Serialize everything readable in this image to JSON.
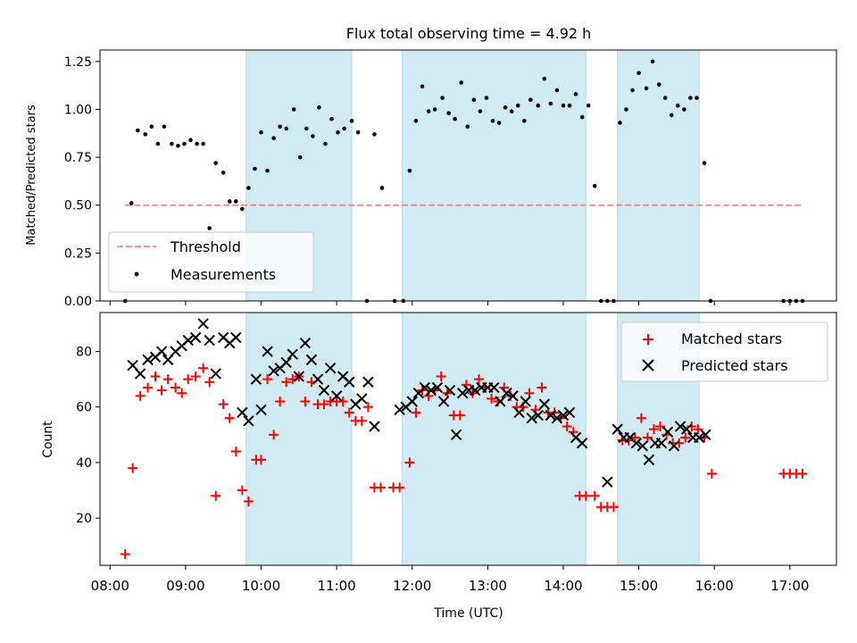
{
  "chart_data": [
    {
      "type": "scatter",
      "title": "Flux total observing time = 4.92 h",
      "xlabel": "",
      "ylabel": "Matched/Predicted stars",
      "xlim": [
        "07:52",
        "17:37"
      ],
      "ylim": [
        0,
        1.31
      ],
      "yticks": [
        0.0,
        0.25,
        0.5,
        0.75,
        1.0,
        1.25
      ],
      "ytick_labels": [
        "0.00",
        "0.25",
        "0.50",
        "0.75",
        "1.00",
        "1.25"
      ],
      "shaded_intervals": [
        [
          "09:48",
          "11:12"
        ],
        [
          "11:52",
          "14:18"
        ],
        [
          "14:43",
          "15:48"
        ]
      ],
      "shade_color": "#add8e6",
      "legend": {
        "position": "lower-left",
        "entries": [
          {
            "label": "Threshold",
            "color": "#ff7f7f",
            "style": "dashed-line"
          },
          {
            "label": "Measurements",
            "color": "#000000",
            "style": "dot"
          }
        ]
      },
      "series": [
        {
          "name": "Threshold",
          "kind": "line",
          "color": "#ff7f7f",
          "x": [
            "08:12",
            "17:10"
          ],
          "y": [
            0.5,
            0.5
          ]
        },
        {
          "name": "Measurements",
          "kind": "scatter",
          "color": "#000000",
          "x": [
            "08:12",
            "08:17",
            "08:22",
            "08:28",
            "08:33",
            "08:38",
            "08:43",
            "08:49",
            "08:54",
            "08:59",
            "09:04",
            "09:09",
            "09:14",
            "09:19",
            "09:24",
            "09:30",
            "09:35",
            "09:40",
            "09:45",
            "09:50",
            "09:55",
            "10:00",
            "10:05",
            "10:10",
            "10:15",
            "10:20",
            "10:26",
            "10:31",
            "10:36",
            "10:41",
            "10:46",
            "10:51",
            "10:56",
            "11:01",
            "11:06",
            "11:12",
            "11:17",
            "11:24",
            "11:30",
            "11:36",
            "11:46",
            "11:53",
            "11:58",
            "12:03",
            "12:08",
            "12:13",
            "12:18",
            "12:24",
            "12:29",
            "12:34",
            "12:39",
            "12:44",
            "12:49",
            "12:54",
            "12:59",
            "13:04",
            "13:09",
            "13:14",
            "13:19",
            "13:24",
            "13:29",
            "13:34",
            "13:40",
            "13:45",
            "13:50",
            "13:55",
            "14:00",
            "14:05",
            "14:10",
            "14:15",
            "14:20",
            "14:25",
            "14:30",
            "14:35",
            "14:40",
            "14:45",
            "14:50",
            "14:55",
            "15:00",
            "15:06",
            "15:11",
            "15:16",
            "15:21",
            "15:26",
            "15:31",
            "15:36",
            "15:41",
            "15:46",
            "15:52",
            "15:57",
            "16:55",
            "17:00",
            "17:05",
            "17:10"
          ],
          "y": [
            0.0,
            0.51,
            0.89,
            0.87,
            0.91,
            0.82,
            0.91,
            0.82,
            0.81,
            0.82,
            0.84,
            0.82,
            0.82,
            0.38,
            0.72,
            0.67,
            0.52,
            0.52,
            0.48,
            0.59,
            0.69,
            0.88,
            0.68,
            0.85,
            0.91,
            0.9,
            1.0,
            0.75,
            0.9,
            0.86,
            1.01,
            0.82,
            0.95,
            0.88,
            0.9,
            0.94,
            0.88,
            0.0,
            0.87,
            0.59,
            0.0,
            0.0,
            0.68,
            0.94,
            1.12,
            0.99,
            1.0,
            1.06,
            0.98,
            0.95,
            1.14,
            0.91,
            1.05,
            0.99,
            1.06,
            0.94,
            0.93,
            1.01,
            0.99,
            1.02,
            0.94,
            1.05,
            1.02,
            1.16,
            1.03,
            1.1,
            1.02,
            1.02,
            1.08,
            0.96,
            1.02,
            0.6,
            0.0,
            0.0,
            0.0,
            0.93,
            1.0,
            1.1,
            1.19,
            1.11,
            1.25,
            1.13,
            1.06,
            0.97,
            1.02,
            1.0,
            1.06,
            1.06,
            0.72,
            0.0,
            0.0,
            0.0,
            0.0,
            0.0
          ]
        }
      ]
    },
    {
      "type": "scatter",
      "xlabel": "Time (UTC)",
      "ylabel": "Count",
      "xlim": [
        "07:52",
        "17:37"
      ],
      "ylim": [
        3,
        94
      ],
      "yticks": [
        20,
        40,
        60,
        80
      ],
      "ytick_labels": [
        "20",
        "40",
        "60",
        "80"
      ],
      "xticks": [
        "08:00",
        "09:00",
        "10:00",
        "11:00",
        "12:00",
        "13:00",
        "14:00",
        "15:00",
        "16:00",
        "17:00"
      ],
      "xtick_labels": [
        "08:00",
        "09:00",
        "10:00",
        "11:00",
        "12:00",
        "13:00",
        "14:00",
        "15:00",
        "16:00",
        "17:00"
      ],
      "shaded_intervals": [
        [
          "09:48",
          "11:12"
        ],
        [
          "11:52",
          "14:18"
        ],
        [
          "14:43",
          "15:48"
        ]
      ],
      "legend": {
        "position": "upper-right",
        "entries": [
          {
            "label": "Matched stars",
            "color": "#ff0000",
            "style": "plus"
          },
          {
            "label": "Predicted stars",
            "color": "#000000",
            "style": "cross"
          }
        ]
      },
      "series": [
        {
          "name": "Matched stars",
          "marker": "+",
          "color": "#ff0000",
          "x": [
            "08:12",
            "08:18",
            "08:24",
            "08:30",
            "08:36",
            "08:41",
            "08:46",
            "08:52",
            "08:57",
            "09:02",
            "09:08",
            "09:14",
            "09:19",
            "09:24",
            "09:30",
            "09:35",
            "09:40",
            "09:45",
            "09:50",
            "09:56",
            "10:00",
            "10:05",
            "10:10",
            "10:15",
            "10:20",
            "10:25",
            "10:30",
            "10:35",
            "10:40",
            "10:45",
            "10:50",
            "10:55",
            "11:00",
            "11:05",
            "11:10",
            "11:15",
            "11:20",
            "11:25",
            "11:30",
            "11:35",
            "11:45",
            "11:50",
            "11:58",
            "12:03",
            "12:08",
            "12:13",
            "12:18",
            "12:23",
            "12:28",
            "12:33",
            "12:38",
            "12:43",
            "12:48",
            "12:53",
            "12:58",
            "13:03",
            "13:08",
            "13:13",
            "13:18",
            "13:23",
            "13:28",
            "13:33",
            "13:38",
            "13:43",
            "13:48",
            "13:53",
            "13:58",
            "14:03",
            "14:08",
            "14:13",
            "14:18",
            "14:25",
            "14:30",
            "14:35",
            "14:40",
            "14:47",
            "14:52",
            "14:57",
            "15:02",
            "15:07",
            "15:12",
            "15:17",
            "15:22",
            "15:27",
            "15:32",
            "15:37",
            "15:42",
            "15:47",
            "15:52",
            "15:58",
            "16:55",
            "17:00",
            "17:05",
            "17:10"
          ],
          "y": [
            7,
            38,
            64,
            67,
            71,
            66,
            70,
            67,
            65,
            70,
            71,
            74,
            69,
            28,
            61,
            56,
            44,
            30,
            26,
            41,
            41,
            70,
            50,
            62,
            69,
            70,
            71,
            62,
            69,
            61,
            61,
            62,
            62,
            62,
            58,
            55,
            55,
            60,
            31,
            31,
            31,
            31,
            40,
            58,
            66,
            64,
            66,
            71,
            65,
            57,
            57,
            68,
            65,
            70,
            67,
            63,
            62,
            67,
            64,
            60,
            60,
            65,
            59,
            67,
            58,
            58,
            56,
            53,
            51,
            28,
            28,
            28,
            24,
            24,
            24,
            48,
            48,
            49,
            56,
            49,
            52,
            53,
            50,
            47,
            47,
            49,
            53,
            52,
            49,
            36,
            36,
            36,
            36,
            36
          ]
        },
        {
          "name": "Predicted stars",
          "marker": "x",
          "color": "#000000",
          "x": [
            "08:18",
            "08:24",
            "08:30",
            "08:36",
            "08:41",
            "08:46",
            "08:52",
            "08:57",
            "09:02",
            "09:08",
            "09:14",
            "09:19",
            "09:24",
            "09:30",
            "09:35",
            "09:40",
            "09:45",
            "09:50",
            "09:56",
            "10:00",
            "10:05",
            "10:10",
            "10:15",
            "10:20",
            "10:25",
            "10:30",
            "10:35",
            "10:40",
            "10:45",
            "10:50",
            "10:55",
            "11:00",
            "11:05",
            "11:10",
            "11:15",
            "11:20",
            "11:25",
            "11:30",
            "11:50",
            "11:55",
            "12:00",
            "12:05",
            "12:10",
            "12:15",
            "12:20",
            "12:25",
            "12:30",
            "12:35",
            "12:40",
            "12:45",
            "12:50",
            "12:55",
            "13:00",
            "13:05",
            "13:10",
            "13:15",
            "13:20",
            "13:25",
            "13:30",
            "13:35",
            "13:40",
            "13:45",
            "13:50",
            "13:55",
            "14:00",
            "14:05",
            "14:10",
            "14:15",
            "14:35",
            "14:43",
            "14:48",
            "14:53",
            "14:58",
            "15:03",
            "15:08",
            "15:13",
            "15:18",
            "15:23",
            "15:28",
            "15:33",
            "15:38",
            "15:43",
            "15:48",
            "15:53"
          ],
          "y": [
            75,
            72,
            77,
            78,
            80,
            77,
            80,
            82,
            84,
            85,
            90,
            84,
            72,
            85,
            83,
            85,
            58,
            55,
            70,
            59,
            80,
            73,
            74,
            76,
            79,
            71,
            83,
            77,
            70,
            66,
            74,
            64,
            71,
            69,
            61,
            63,
            69,
            53,
            59,
            60,
            62,
            65,
            67,
            66,
            67,
            62,
            66,
            50,
            65,
            66,
            66,
            67,
            67,
            67,
            62,
            65,
            64,
            58,
            62,
            56,
            57,
            61,
            57,
            56,
            57,
            58,
            49,
            47,
            33,
            52,
            49,
            49,
            47,
            46,
            41,
            47,
            47,
            51,
            46,
            53,
            52,
            49,
            49,
            50
          ]
        }
      ]
    }
  ]
}
